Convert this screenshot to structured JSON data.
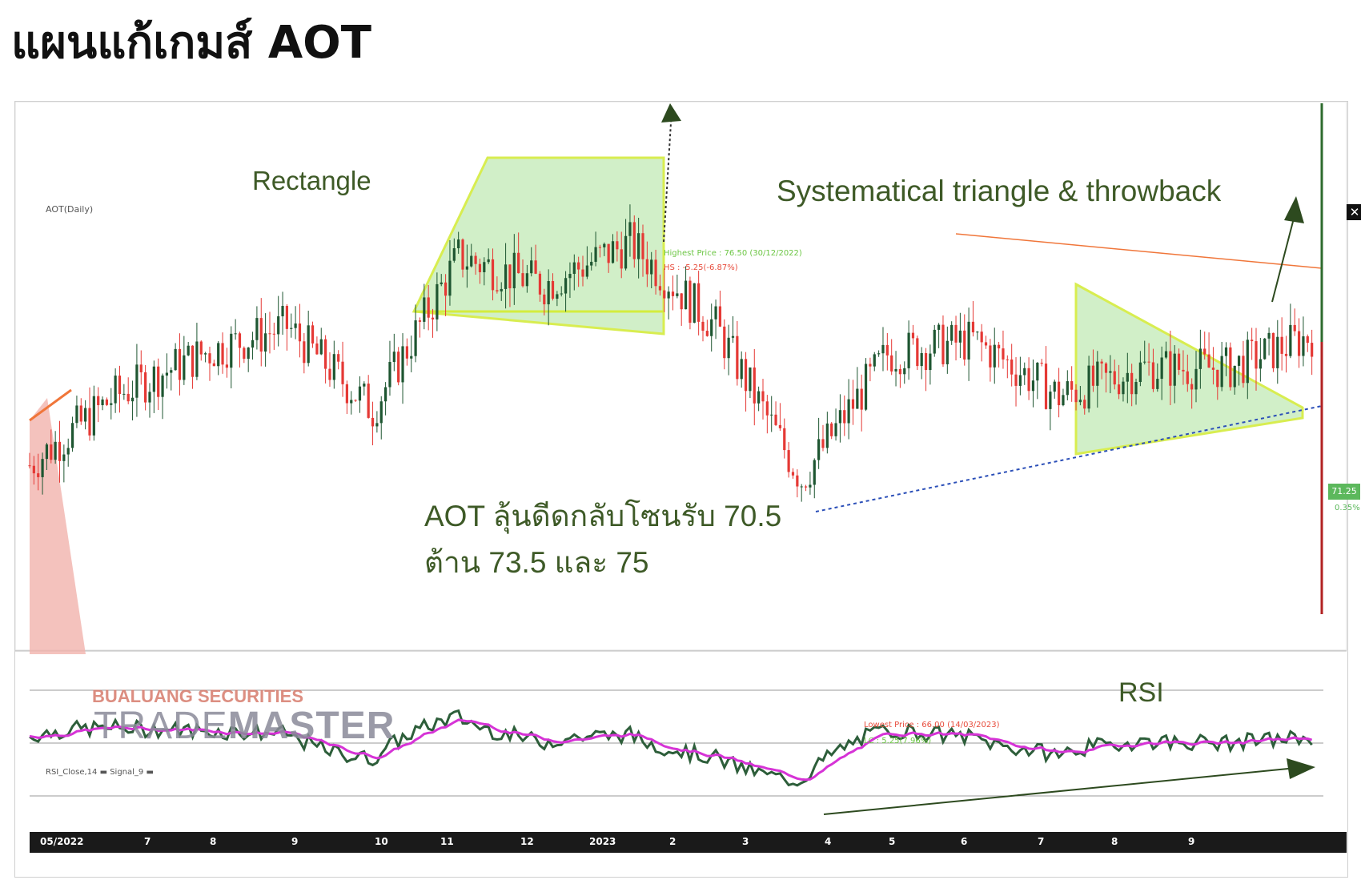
{
  "title": "แผนแก้เกมส์ AOT",
  "chart_data": {
    "type": "candlestick",
    "symbol_label": "AOT(Daily)",
    "rsi_label": "RSI_Close,14 ▬ Signal_9 ▬",
    "x_ticks": [
      "05/2022",
      "7",
      "8",
      "9",
      "10",
      "11",
      "12",
      "2023",
      "2",
      "3",
      "4",
      "5",
      "6",
      "7",
      "8",
      "9"
    ],
    "y_range": [
      60,
      79
    ],
    "candles_close_approx": [
      {
        "month": "05/2022",
        "close": 66.5
      },
      {
        "month": "7",
        "close": 69.0
      },
      {
        "month": "8",
        "close": 70.5
      },
      {
        "month": "9",
        "close": 71.5
      },
      {
        "month": "10",
        "close": 68.5
      },
      {
        "month": "11",
        "close": 74.0
      },
      {
        "month": "12",
        "close": 73.0
      },
      {
        "month": "2023",
        "close": 74.5
      },
      {
        "month": "2",
        "close": 71.5
      },
      {
        "month": "3",
        "close": 66.0
      },
      {
        "month": "4",
        "close": 70.5
      },
      {
        "month": "5",
        "close": 71.0
      },
      {
        "month": "6",
        "close": 69.0
      },
      {
        "month": "7",
        "close": 70.0
      },
      {
        "month": "8",
        "close": 70.0
      },
      {
        "month": "9",
        "close": 71.25
      }
    ],
    "last_price": "71.25",
    "last_change": "0.35%",
    "highest_label": "Highest Price : 76.50 (30/12/2022)",
    "highest_change": "HS : -5.25(-6.87%)",
    "lowest_label": "Lowest Price : 66.00 (14/03/2023)",
    "lowest_change": "LC : 5.25(7.96%)",
    "annotations": {
      "rectangle": "Rectangle",
      "triangle": "Systematical triangle & throwback",
      "rsi": "RSI",
      "note_line1": "AOT ลุ้นดีดกลับโซนรับ 70.5",
      "note_line2": "ต้าน 73.5 และ 75"
    },
    "colors": {
      "bull": "#1e5631",
      "bear": "#e53935",
      "pattern_fill": "#cdeec3",
      "pattern_edge": "#d4ec3e",
      "rsi_line": "#2d5e3a",
      "signal_line": "#d633d6",
      "annotation": "#3e5a27"
    }
  },
  "watermark": {
    "line1": "BUALUANG SECURITIES",
    "line2a": "TRADE",
    "line2b": "MASTER"
  },
  "ui": {
    "close_symbol": "✕"
  }
}
